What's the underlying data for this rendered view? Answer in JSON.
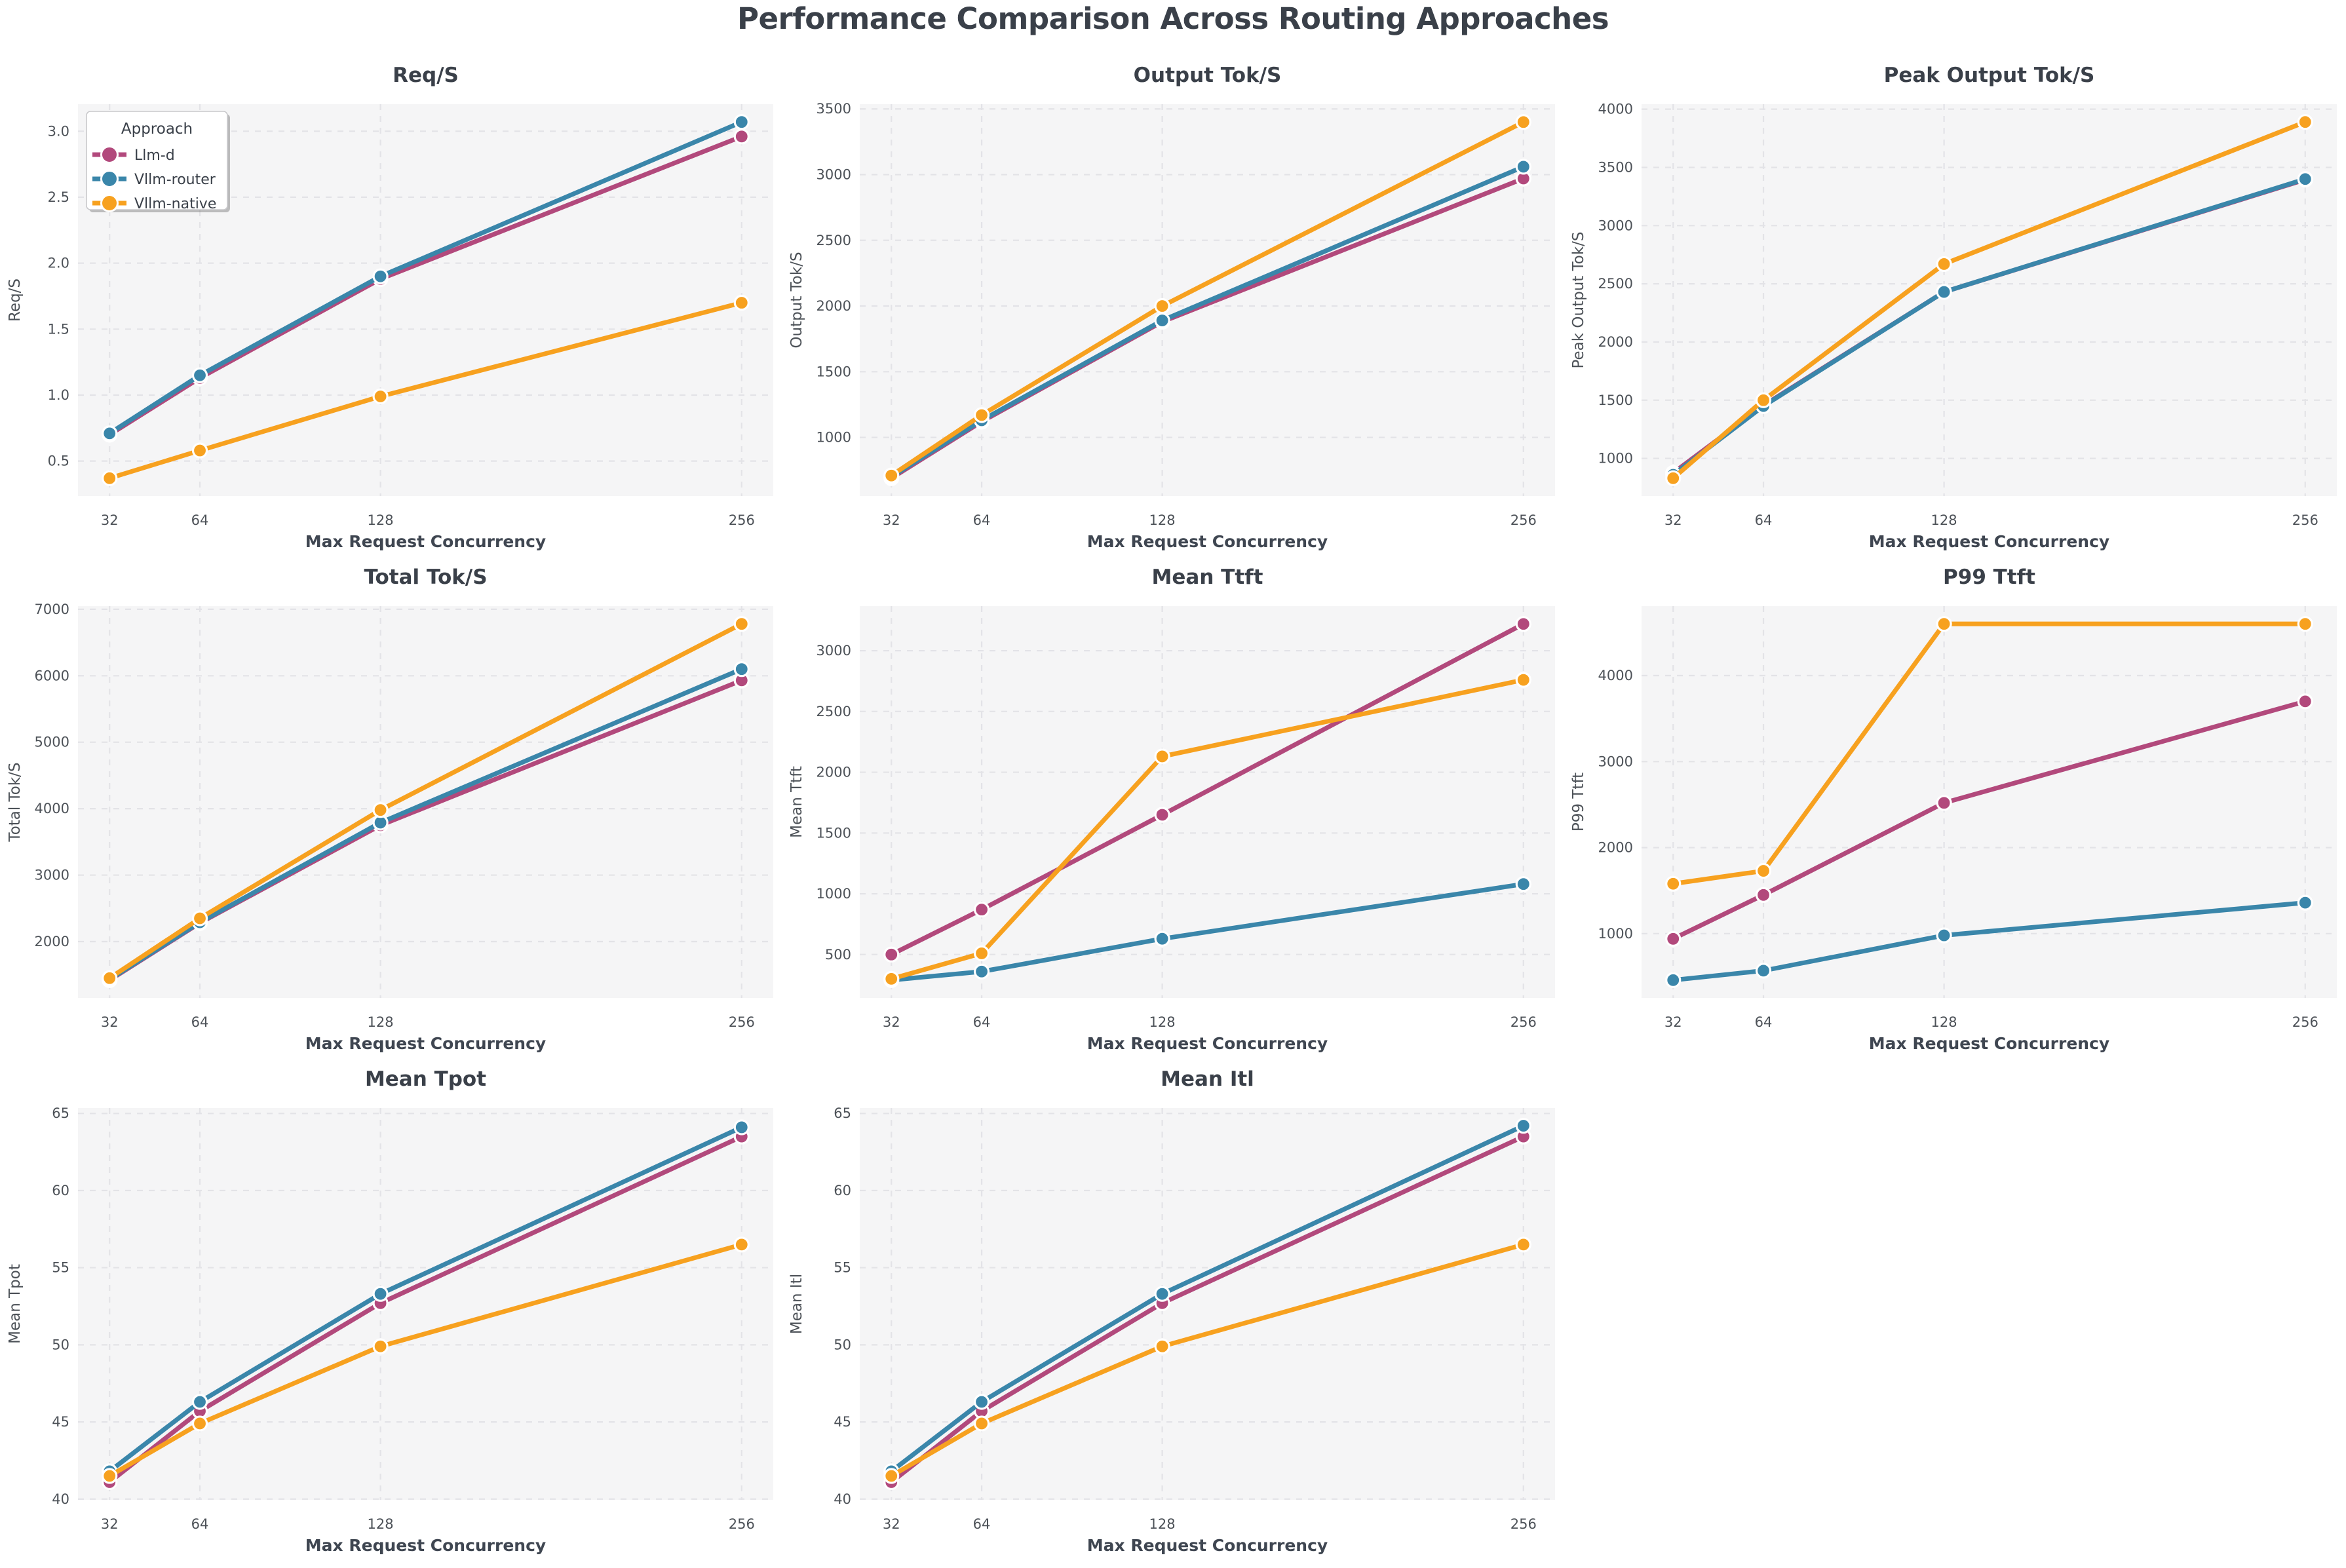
{
  "main_title": "Performance Comparison Across Routing Approaches",
  "x_axis": {
    "label": "Max Request Concurrency",
    "ticks": [
      32,
      64,
      128,
      256
    ],
    "lim": [
      20.8,
      267.2
    ],
    "scale": "linear"
  },
  "legend": {
    "title": "Approach",
    "entries": [
      "Llm-d",
      "Vllm-router",
      "Vllm-native"
    ],
    "position": "upper-left",
    "shown_on_chart": "Req/S"
  },
  "theme": {
    "figure_bg": "#ffffff",
    "plot_bg": "#f5f5f6",
    "grid_color": "#e3e3e7",
    "grid_style": "dashed",
    "title_color": "#3a4049",
    "tick_color": "#4d5258",
    "axis_label_color": "#3f4651",
    "legend_border": "#c9c9cc",
    "series_colors": {
      "Llm-d": "#b2497c",
      "Vllm-router": "#3a86aa",
      "Vllm-native": "#f7a11f"
    }
  },
  "chart_data": [
    {
      "type": "line",
      "title": "Req/S",
      "ylabel": "Req/S",
      "xlabel": "Max Request Concurrency",
      "x": [
        32,
        64,
        128,
        256
      ],
      "y_ticks": [
        0.5,
        1.0,
        1.5,
        2.0,
        2.5,
        3.0
      ],
      "y_tick_decimals": 1,
      "ylim": [
        0.235,
        3.205
      ],
      "grid": true,
      "legend": true,
      "series": [
        {
          "name": "Llm-d",
          "values": [
            0.7,
            1.13,
            1.88,
            2.96
          ]
        },
        {
          "name": "Vllm-router",
          "values": [
            0.71,
            1.15,
            1.9,
            3.07
          ]
        },
        {
          "name": "Vllm-native",
          "values": [
            0.37,
            0.58,
            0.99,
            1.7
          ]
        }
      ]
    },
    {
      "type": "line",
      "title": "Output Tok/S",
      "ylabel": "Output Tok/S",
      "xlabel": "Max Request Concurrency",
      "x": [
        32,
        64,
        128,
        256
      ],
      "y_ticks": [
        1000,
        1500,
        2000,
        2500,
        3000,
        3500
      ],
      "y_tick_decimals": 0,
      "ylim": [
        554,
        3536
      ],
      "grid": true,
      "legend": false,
      "series": [
        {
          "name": "Llm-d",
          "values": [
            690,
            1120,
            1880,
            2970
          ]
        },
        {
          "name": "Vllm-router",
          "values": [
            700,
            1130,
            1890,
            3060
          ]
        },
        {
          "name": "Vllm-native",
          "values": [
            710,
            1170,
            2000,
            3400
          ]
        }
      ]
    },
    {
      "type": "line",
      "title": "Peak Output Tok/S",
      "ylabel": "Peak Output Tok/S",
      "xlabel": "Max Request Concurrency",
      "x": [
        32,
        64,
        128,
        256
      ],
      "y_ticks": [
        1000,
        1500,
        2000,
        2500,
        3000,
        3500,
        4000
      ],
      "y_tick_decimals": 0,
      "ylim": [
        677,
        4043
      ],
      "grid": true,
      "legend": false,
      "series": [
        {
          "name": "Llm-d",
          "values": [
            875,
            1455,
            2430,
            3395
          ]
        },
        {
          "name": "Vllm-router",
          "values": [
            860,
            1450,
            2430,
            3400
          ]
        },
        {
          "name": "Vllm-native",
          "values": [
            830,
            1500,
            2670,
            3890
          ]
        }
      ]
    },
    {
      "type": "line",
      "title": "Total Tok/S",
      "ylabel": "Total Tok/S",
      "xlabel": "Max Request Concurrency",
      "x": [
        32,
        64,
        128,
        256
      ],
      "y_ticks": [
        2000,
        3000,
        4000,
        5000,
        6000,
        7000
      ],
      "y_tick_decimals": 0,
      "ylim": [
        1152,
        7048
      ],
      "grid": true,
      "legend": false,
      "series": [
        {
          "name": "Llm-d",
          "values": [
            1420,
            2280,
            3750,
            5930
          ]
        },
        {
          "name": "Vllm-router",
          "values": [
            1430,
            2290,
            3790,
            6100
          ]
        },
        {
          "name": "Vllm-native",
          "values": [
            1450,
            2350,
            3980,
            6780
          ]
        }
      ]
    },
    {
      "type": "line",
      "title": "Mean Ttft",
      "ylabel": "Mean Ttft",
      "xlabel": "Max Request Concurrency",
      "x": [
        32,
        64,
        128,
        256
      ],
      "y_ticks": [
        500,
        1000,
        1500,
        2000,
        2500,
        3000
      ],
      "y_tick_decimals": 0,
      "ylim": [
        143,
        3367
      ],
      "grid": true,
      "legend": false,
      "series": [
        {
          "name": "Llm-d",
          "values": [
            500,
            870,
            1650,
            3220
          ]
        },
        {
          "name": "Vllm-router",
          "values": [
            290,
            360,
            630,
            1080
          ]
        },
        {
          "name": "Vllm-native",
          "values": [
            300,
            510,
            2130,
            2760
          ]
        }
      ]
    },
    {
      "type": "line",
      "title": "P99 Ttft",
      "ylabel": "P99 Ttft",
      "xlabel": "Max Request Concurrency",
      "x": [
        32,
        64,
        128,
        256
      ],
      "y_ticks": [
        1000,
        2000,
        3000,
        4000
      ],
      "y_tick_decimals": 0,
      "ylim": [
        253,
        4807
      ],
      "grid": true,
      "legend": false,
      "series": [
        {
          "name": "Llm-d",
          "values": [
            940,
            1450,
            2520,
            3700
          ]
        },
        {
          "name": "Vllm-router",
          "values": [
            460,
            570,
            980,
            1360
          ]
        },
        {
          "name": "Vllm-native",
          "values": [
            1580,
            1730,
            4600,
            4600
          ]
        }
      ]
    },
    {
      "type": "line",
      "title": "Mean Tpot",
      "ylabel": "Mean Tpot",
      "xlabel": "Max Request Concurrency",
      "x": [
        32,
        64,
        128,
        256
      ],
      "y_ticks": [
        40,
        45,
        50,
        55,
        60,
        65
      ],
      "y_tick_decimals": 0,
      "ylim": [
        39.95,
        65.35
      ],
      "grid": true,
      "legend": false,
      "series": [
        {
          "name": "Llm-d",
          "values": [
            41.1,
            45.7,
            52.7,
            63.5
          ]
        },
        {
          "name": "Vllm-router",
          "values": [
            41.8,
            46.3,
            53.3,
            64.1
          ]
        },
        {
          "name": "Vllm-native",
          "values": [
            41.5,
            44.9,
            49.9,
            56.5
          ]
        }
      ]
    },
    {
      "type": "line",
      "title": "Mean Itl",
      "ylabel": "Mean Itl",
      "xlabel": "Max Request Concurrency",
      "x": [
        32,
        64,
        128,
        256
      ],
      "y_ticks": [
        40,
        45,
        50,
        55,
        60,
        65
      ],
      "y_tick_decimals": 0,
      "ylim": [
        39.95,
        65.35
      ],
      "grid": true,
      "legend": false,
      "series": [
        {
          "name": "Llm-d",
          "values": [
            41.1,
            45.7,
            52.7,
            63.5
          ]
        },
        {
          "name": "Vllm-router",
          "values": [
            41.8,
            46.3,
            53.3,
            64.2
          ]
        },
        {
          "name": "Vllm-native",
          "values": [
            41.5,
            44.9,
            49.9,
            56.5
          ]
        }
      ]
    }
  ]
}
